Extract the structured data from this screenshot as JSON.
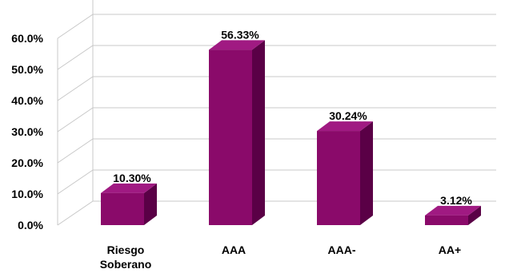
{
  "chart_data": {
    "type": "bar",
    "style": "3d-column",
    "categories": [
      [
        "Riesgo",
        "Soberano"
      ],
      [
        "AAA"
      ],
      [
        "AAA-"
      ],
      [
        "AA+"
      ]
    ],
    "values": [
      10.3,
      56.33,
      30.24,
      3.12
    ],
    "value_labels": [
      "10.30%",
      "56.33%",
      "30.24%",
      "3.12%"
    ],
    "y_ticks": [
      "0.0%",
      "10.0%",
      "20.0%",
      "30.0%",
      "40.0%",
      "50.0%",
      "60.0%"
    ],
    "ylim": [
      0,
      60
    ],
    "grid": true,
    "legend": "none",
    "title": "",
    "xlabel": "",
    "ylabel": "",
    "colors": {
      "bar_front": "#8a0a6a",
      "bar_side": "#5a0046",
      "bar_top": "#a01a82",
      "grid": "#c8c8c8"
    }
  }
}
